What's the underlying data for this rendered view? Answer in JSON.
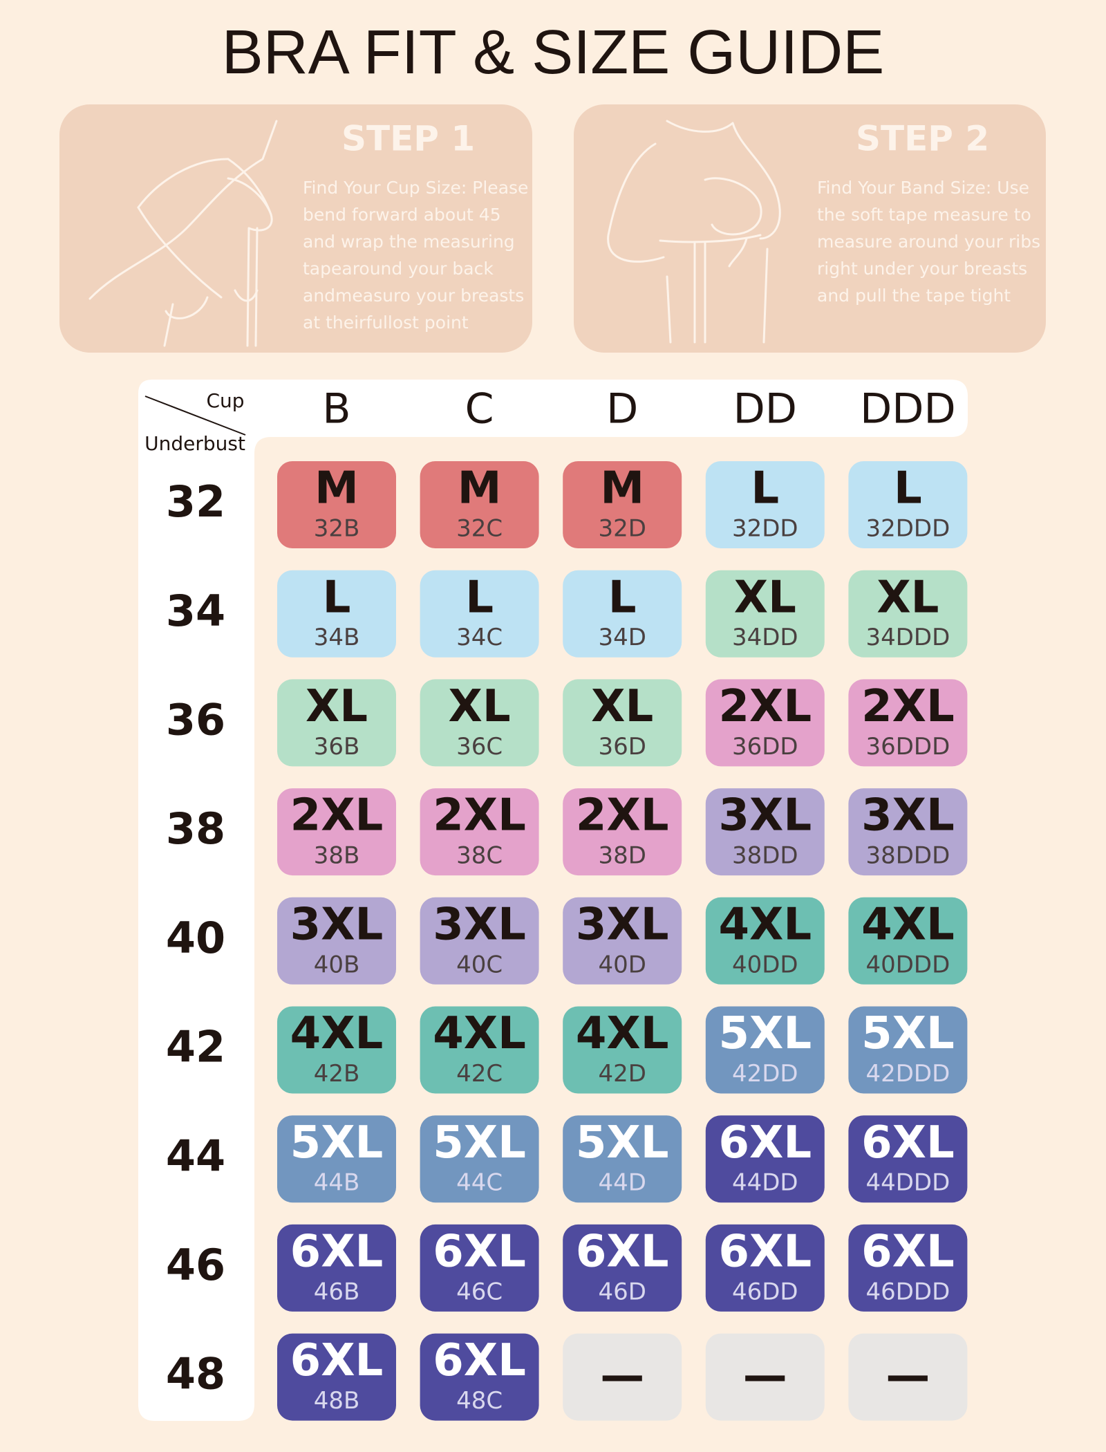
{
  "title": "BRA FIT & SIZE GUIDE",
  "steps": [
    {
      "title": "STEP 1",
      "lines": [
        "Find Your Cup Size: Please",
        "bend forward about 45",
        "and wrap the measuring",
        "tapearound your back",
        "andmeasuro your breasts",
        "at theirfullost point"
      ]
    },
    {
      "title": "STEP 2",
      "lines": [
        "Find Your Band Size: Use",
        "the soft tape measure to",
        "measure around your ribs",
        "right under your breasts",
        "and pull the tape tight"
      ]
    }
  ],
  "table": {
    "corner_top": "Cup",
    "corner_bottom": "Underbust",
    "columns": [
      "B",
      "C",
      "D",
      "DD",
      "DDD"
    ],
    "rows": [
      {
        "band": "32",
        "cells": [
          {
            "size": "M",
            "code": "32B",
            "color": "#e07a7a"
          },
          {
            "size": "M",
            "code": "32C",
            "color": "#e07a7a"
          },
          {
            "size": "M",
            "code": "32D",
            "color": "#e07a7a"
          },
          {
            "size": "L",
            "code": "32DD",
            "color": "#bde2f3"
          },
          {
            "size": "L",
            "code": "32DDD",
            "color": "#bde2f3"
          }
        ]
      },
      {
        "band": "34",
        "cells": [
          {
            "size": "L",
            "code": "34B",
            "color": "#bde2f3"
          },
          {
            "size": "L",
            "code": "34C",
            "color": "#bde2f3"
          },
          {
            "size": "L",
            "code": "34D",
            "color": "#bde2f3"
          },
          {
            "size": "XL",
            "code": "34DD",
            "color": "#b5e0c8"
          },
          {
            "size": "XL",
            "code": "34DDD",
            "color": "#b5e0c8"
          }
        ]
      },
      {
        "band": "36",
        "cells": [
          {
            "size": "XL",
            "code": "36B",
            "color": "#b5e0c8"
          },
          {
            "size": "XL",
            "code": "36C",
            "color": "#b5e0c8"
          },
          {
            "size": "XL",
            "code": "36D",
            "color": "#b5e0c8"
          },
          {
            "size": "2XL",
            "code": "36DD",
            "color": "#e4a2cb"
          },
          {
            "size": "2XL",
            "code": "36DDD",
            "color": "#e4a2cb"
          }
        ]
      },
      {
        "band": "38",
        "cells": [
          {
            "size": "2XL",
            "code": "38B",
            "color": "#e4a2cb"
          },
          {
            "size": "2XL",
            "code": "38C",
            "color": "#e4a2cb"
          },
          {
            "size": "2XL",
            "code": "38D",
            "color": "#e4a2cb"
          },
          {
            "size": "3XL",
            "code": "38DD",
            "color": "#b3a7d2"
          },
          {
            "size": "3XL",
            "code": "38DDD",
            "color": "#b3a7d2"
          }
        ]
      },
      {
        "band": "40",
        "cells": [
          {
            "size": "3XL",
            "code": "40B",
            "color": "#b3a7d2"
          },
          {
            "size": "3XL",
            "code": "40C",
            "color": "#b3a7d2"
          },
          {
            "size": "3XL",
            "code": "40D",
            "color": "#b3a7d2"
          },
          {
            "size": "4XL",
            "code": "40DD",
            "color": "#6dbfb2"
          },
          {
            "size": "4XL",
            "code": "40DDD",
            "color": "#6dbfb2"
          }
        ]
      },
      {
        "band": "42",
        "cells": [
          {
            "size": "4XL",
            "code": "42B",
            "color": "#6dbfb2"
          },
          {
            "size": "4XL",
            "code": "42C",
            "color": "#6dbfb2"
          },
          {
            "size": "4XL",
            "code": "42D",
            "color": "#6dbfb2"
          },
          {
            "size": "5XL",
            "code": "42DD",
            "color": "#7296bf"
          },
          {
            "size": "5XL",
            "code": "42DDD",
            "color": "#7296bf"
          }
        ]
      },
      {
        "band": "44",
        "cells": [
          {
            "size": "5XL",
            "code": "44B",
            "color": "#7296bf"
          },
          {
            "size": "5XL",
            "code": "44C",
            "color": "#7296bf"
          },
          {
            "size": "5XL",
            "code": "44D",
            "color": "#7296bf"
          },
          {
            "size": "6XL",
            "code": "44DD",
            "color": "#4f4b9e"
          },
          {
            "size": "6XL",
            "code": "44DDD",
            "color": "#4f4b9e"
          }
        ]
      },
      {
        "band": "46",
        "cells": [
          {
            "size": "6XL",
            "code": "46B",
            "color": "#4f4b9e"
          },
          {
            "size": "6XL",
            "code": "46C",
            "color": "#4f4b9e"
          },
          {
            "size": "6XL",
            "code": "46D",
            "color": "#4f4b9e"
          },
          {
            "size": "6XL",
            "code": "46DD",
            "color": "#4f4b9e"
          },
          {
            "size": "6XL",
            "code": "46DDD",
            "color": "#4f4b9e"
          }
        ]
      },
      {
        "band": "48",
        "cells": [
          {
            "size": "6XL",
            "code": "48B",
            "color": "#4f4b9e"
          },
          {
            "size": "6XL",
            "code": "48C",
            "color": "#4f4b9e"
          },
          {
            "size": "—",
            "color": "#e8e6e4"
          },
          {
            "size": "—",
            "color": "#e8e6e4"
          },
          {
            "size": "—",
            "color": "#e8e6e4"
          }
        ]
      }
    ]
  }
}
